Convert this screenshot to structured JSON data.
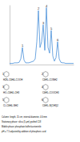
{
  "chart_data": {
    "type": "line",
    "tick_labels": false,
    "color": "#4a90d9",
    "x": [
      0,
      0.25,
      0.5,
      0.75,
      1,
      1.25,
      1.5,
      1.75,
      2,
      2.25,
      2.5,
      2.75,
      3,
      3.25,
      3.5,
      3.75,
      4,
      4.25,
      4.5,
      4.75,
      5,
      5.25,
      5.5,
      5.75,
      6,
      6.25,
      6.5,
      6.75,
      7,
      7.25,
      7.5,
      7.75,
      8,
      8.25,
      8.5,
      8.75,
      9,
      9.25,
      9.5,
      9.75,
      10
    ],
    "values": [
      2,
      2,
      2,
      3,
      3,
      3,
      4,
      10,
      30,
      8,
      3,
      3,
      3,
      4,
      5,
      6,
      10,
      40,
      95,
      30,
      40,
      70,
      25,
      100,
      30,
      20,
      60,
      15,
      6,
      12,
      40,
      10,
      4,
      3,
      3,
      2,
      2,
      2,
      2,
      2,
      2
    ],
    "xlim": [
      0,
      10
    ],
    "ylim": [
      0,
      105
    ],
    "annotations": [
      {
        "text": "1",
        "x": 2,
        "y": 30
      },
      {
        "text": "2",
        "x": 4.5,
        "y": 95
      },
      {
        "text": "3",
        "x": 5.25,
        "y": 70
      },
      {
        "text": "4",
        "x": 5.75,
        "y": 100
      },
      {
        "text": "5",
        "x": 6.5,
        "y": 60
      },
      {
        "text": "6",
        "x": 7.5,
        "y": 40
      }
    ]
  },
  "structures": [
    {
      "number": "1",
      "formula": "H2N–C6H4–COOH"
    },
    {
      "number": "2",
      "formula": "C6H5–CONH2"
    },
    {
      "number": "3",
      "formula": "HO–C6H4–CH3"
    },
    {
      "number": "4",
      "formula": "C6H5–COOCH3"
    },
    {
      "number": "5",
      "formula": "Cl–C6H4–NH2"
    },
    {
      "number": "6",
      "formula": "C6H5–N(CH3)2"
    }
  ],
  "caption": [
    "Column: length, 15 cm; internal diameter, 4.6 mm",
    "Stationary phase: silica (5 µm) grafted C18",
    "Mobile phase: phosphate buffer/acetonitrile",
    "pH = 7.5 adjusted by addition of phosphoric acid"
  ]
}
